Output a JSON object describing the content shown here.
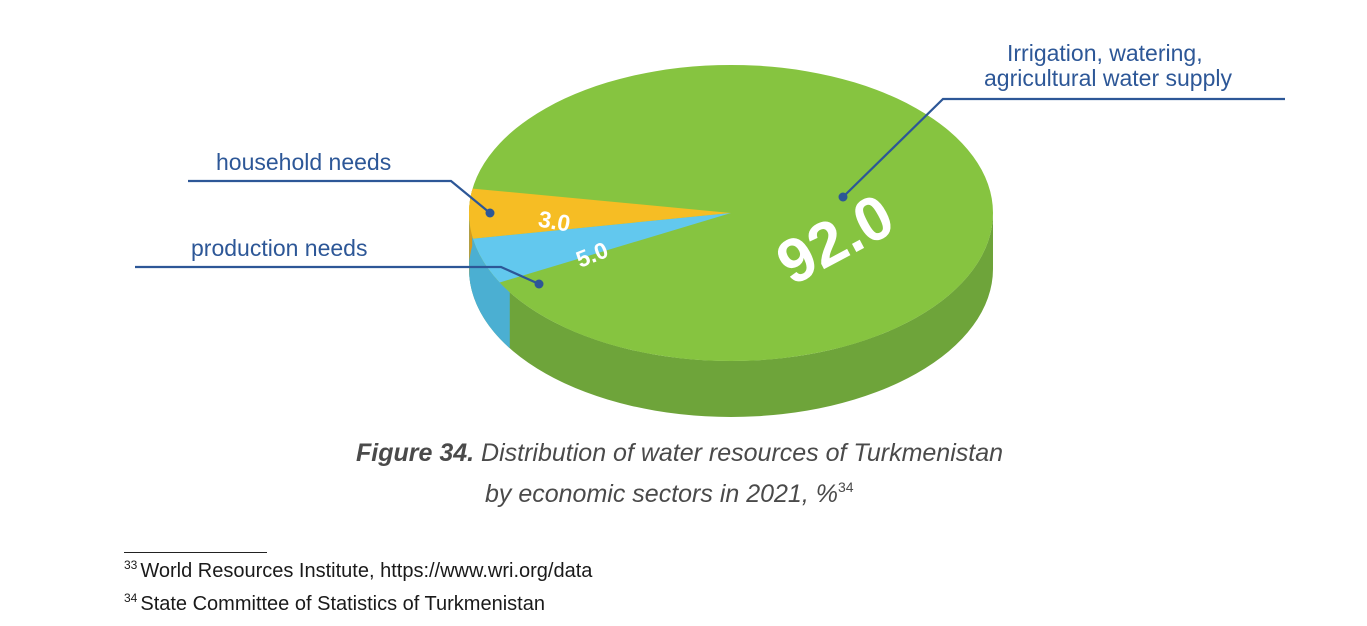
{
  "chart_data": {
    "type": "pie",
    "style": "3d",
    "unit": "%",
    "slices": [
      {
        "label": "Irrigation, watering, agricultural water supply",
        "label_lines": [
          "Irrigation, watering,",
          "agricultural water supply"
        ],
        "value": 92.0,
        "value_text": "92.0",
        "color": "#86c440",
        "side_color": "#6ea43a"
      },
      {
        "label": "household needs",
        "value": 3.0,
        "value_text": "3.0",
        "color": "#f6bd24",
        "side_color": "#d99a1a"
      },
      {
        "label": "production needs",
        "value": 5.0,
        "value_text": "5.0",
        "color": "#62c8ee",
        "side_color": "#4bafd2"
      }
    ],
    "callout_color": "#2d5797"
  },
  "caption": {
    "figure_label": "Figure 34.",
    "line1": "Distribution of water resources of Turkmenistan",
    "line2": "by economic sectors in 2021, %",
    "superscript": "34"
  },
  "footnotes": [
    {
      "marker": "33",
      "text": "World Resources Institute, https://www.wri.org/data"
    },
    {
      "marker": "34",
      "text": "State Committee of Statistics of Turkmenistan"
    }
  ]
}
